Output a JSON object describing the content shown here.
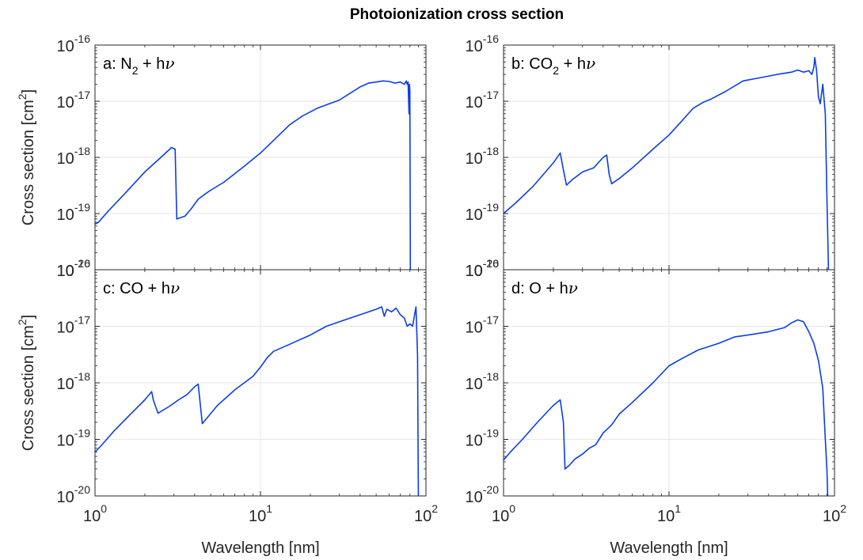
{
  "figure": {
    "title": "Photoionization cross section"
  },
  "colors": {
    "series": "#0a3ee8",
    "axis": "#262626",
    "grid": "#e6e6e6"
  },
  "chart_data": [
    {
      "type": "line",
      "panel_label": "a: N₂ + hν",
      "label_parts": {
        "pre": "a: N",
        "sub": "2",
        "post": " + h",
        "nu": "ν"
      },
      "x_scale": "log",
      "y_scale": "log",
      "xlim": [
        1,
        100
      ],
      "ylim": [
        1e-20,
        1e-16
      ],
      "xlabel": "",
      "ylabel": "Cross section [cm²]",
      "grid": true,
      "series": [
        {
          "x": [
            1.0,
            1.05,
            1.2,
            1.5,
            2.0,
            2.5,
            2.9,
            3.05,
            3.12,
            3.5,
            3.8,
            4.2,
            4.6,
            5.0,
            6.0,
            8.0,
            10.0,
            12.0,
            15.0,
            18.0,
            22.0,
            26.0,
            30.0,
            35.0,
            40.0,
            45.0,
            50.0,
            55.0,
            60.0,
            65.0,
            70.0,
            74.0,
            76.0,
            77.0,
            78.0,
            79.0,
            79.5,
            80.0,
            80.5
          ],
          "y": [
            6.5e-20,
            7e-20,
            1.1e-19,
            2.2e-19,
            5.5e-19,
            1e-18,
            1.5e-18,
            1.4e-18,
            8e-20,
            9e-20,
            1.2e-19,
            1.8e-19,
            2.2e-19,
            2.6e-19,
            3.6e-19,
            7e-19,
            1.2e-18,
            2e-18,
            3.8e-18,
            5.5e-18,
            7.5e-18,
            9e-18,
            1.05e-17,
            1.4e-17,
            1.8e-17,
            2.1e-17,
            2.2e-17,
            2.3e-17,
            2.25e-17,
            2.1e-17,
            2.2e-17,
            2e-17,
            2.3e-17,
            2e-17,
            2.2e-17,
            6e-18,
            2e-17,
            1.5e-17,
            1e-20
          ]
        }
      ]
    },
    {
      "type": "line",
      "panel_label": "b: CO₂ + hν",
      "label_parts": {
        "pre": "b: CO",
        "sub": "2",
        "post": " + h",
        "nu": "ν"
      },
      "x_scale": "log",
      "y_scale": "log",
      "xlim": [
        1,
        100
      ],
      "ylim": [
        1e-20,
        1e-16
      ],
      "xlabel": "",
      "ylabel": "",
      "grid": true,
      "series": [
        {
          "x": [
            1.0,
            1.2,
            1.5,
            2.0,
            2.2,
            2.3,
            2.4,
            2.6,
            3.0,
            3.5,
            4.0,
            4.2,
            4.35,
            4.5,
            5.0,
            6.0,
            8.0,
            10.0,
            12.0,
            14.0,
            16.0,
            18.0,
            22.0,
            28.0,
            35.0,
            45.0,
            55.0,
            60.0,
            65.0,
            70.0,
            73.0,
            75.0,
            76.0,
            78.0,
            80.0,
            82.0,
            85.0,
            88.0,
            90.0,
            92.0
          ],
          "y": [
            1e-19,
            1.6e-19,
            3e-19,
            8e-19,
            1.2e-18,
            6e-19,
            3.2e-19,
            4e-19,
            5.5e-19,
            6.5e-19,
            1e-18,
            1.1e-18,
            5e-19,
            3.4e-19,
            4.2e-19,
            6.5e-19,
            1.4e-18,
            2.5e-18,
            4.5e-18,
            7.5e-18,
            9.5e-18,
            1.1e-17,
            1.5e-17,
            2.3e-17,
            2.6e-17,
            3e-17,
            3.3e-17,
            3.6e-17,
            3.3e-17,
            3.5e-17,
            3e-17,
            4e-17,
            6e-17,
            3.5e-17,
            1.2e-17,
            9e-18,
            2e-17,
            6e-18,
            2e-19,
            1e-20
          ]
        }
      ]
    },
    {
      "type": "line",
      "panel_label": "c: CO + hν",
      "label_parts": {
        "pre": "c: CO",
        "sub": "",
        "post": " + h",
        "nu": "ν"
      },
      "x_scale": "log",
      "y_scale": "log",
      "xlim": [
        1,
        100
      ],
      "ylim": [
        1e-20,
        1e-16
      ],
      "xlabel": "Wavelength [nm]",
      "ylabel": "Cross section [cm²]",
      "grid": true,
      "series": [
        {
          "x": [
            1.0,
            1.1,
            1.3,
            1.6,
            2.0,
            2.2,
            2.25,
            2.4,
            2.8,
            3.2,
            3.6,
            4.0,
            4.2,
            4.3,
            4.45,
            4.7,
            5.5,
            7.0,
            9.0,
            10.0,
            11.0,
            12.0,
            15.0,
            20.0,
            25.0,
            30.0,
            40.0,
            50.0,
            54.0,
            56.0,
            58.0,
            62.0,
            66.0,
            70.0,
            74.0,
            77.0,
            80.0,
            83.0,
            87.0,
            89.0,
            90.0
          ],
          "y": [
            6e-20,
            8e-20,
            1.4e-19,
            2.6e-19,
            5e-19,
            7e-19,
            5e-19,
            2.9e-19,
            3.8e-19,
            5e-19,
            6.2e-19,
            8.5e-19,
            9.5e-19,
            5e-19,
            1.9e-19,
            2.3e-19,
            4e-19,
            7.5e-19,
            1.3e-18,
            1.9e-18,
            2.8e-18,
            3.6e-18,
            4.8e-18,
            7e-18,
            1e-17,
            1.2e-17,
            1.6e-17,
            2e-17,
            2.2e-17,
            1.5e-17,
            2e-17,
            1.8e-17,
            2.1e-17,
            1.6e-17,
            1.4e-17,
            1e-17,
            1.1e-17,
            1e-17,
            2.2e-17,
            3e-18,
            1e-20
          ]
        }
      ]
    },
    {
      "type": "line",
      "panel_label": "d: O + hν",
      "label_parts": {
        "pre": "d: O",
        "sub": "",
        "post": " + h",
        "nu": "ν"
      },
      "x_scale": "log",
      "y_scale": "log",
      "xlim": [
        1,
        100
      ],
      "ylim": [
        1e-20,
        1e-16
      ],
      "xlabel": "Wavelength [nm]",
      "ylabel": "",
      "grid": true,
      "series": [
        {
          "x": [
            1.0,
            1.1,
            1.3,
            1.6,
            2.0,
            2.2,
            2.3,
            2.35,
            2.5,
            2.7,
            3.0,
            3.3,
            3.6,
            4.0,
            4.5,
            5.0,
            6.0,
            8.0,
            10.0,
            12.0,
            15.0,
            20.0,
            25.0,
            30.0,
            40.0,
            50.0,
            55.0,
            60.0,
            65.0,
            70.0,
            75.0,
            80.0,
            85.0,
            88.0,
            90.0,
            91.0
          ],
          "y": [
            4.3e-20,
            6e-20,
            1e-19,
            2e-19,
            4e-19,
            5e-19,
            2e-19,
            3e-20,
            3.5e-20,
            4.5e-20,
            5.5e-20,
            7e-20,
            8e-20,
            1.3e-19,
            1.8e-19,
            2.8e-19,
            4.5e-19,
            1e-18,
            2e-18,
            2.7e-18,
            3.8e-18,
            5e-18,
            6.5e-18,
            7e-18,
            8e-18,
            9.5e-18,
            1.15e-17,
            1.3e-17,
            1.2e-17,
            8e-18,
            5e-18,
            2.5e-18,
            8e-19,
            1e-19,
            3e-20,
            1e-20
          ]
        }
      ]
    }
  ],
  "axes": {
    "x_ticks": [
      {
        "value": 1,
        "base": "10",
        "exp": "0"
      },
      {
        "value": 10,
        "base": "10",
        "exp": "1"
      },
      {
        "value": 100,
        "base": "10",
        "exp": "2"
      }
    ],
    "y_ticks": [
      {
        "value": 1e-20,
        "base": "10",
        "exp": "-20"
      },
      {
        "value": 1e-19,
        "base": "10",
        "exp": "-19"
      },
      {
        "value": 1e-18,
        "base": "10",
        "exp": "-18"
      },
      {
        "value": 1e-17,
        "base": "10",
        "exp": "-17"
      },
      {
        "value": 1e-16,
        "base": "10",
        "exp": "-16"
      }
    ]
  }
}
